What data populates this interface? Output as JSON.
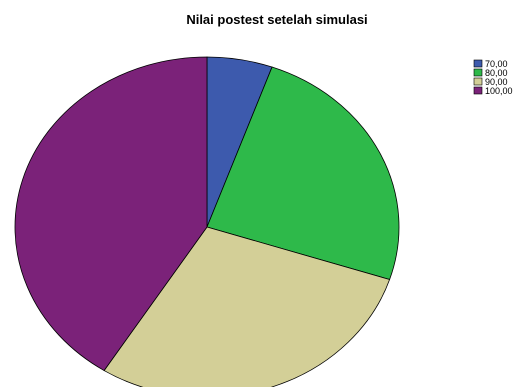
{
  "chart_data": {
    "type": "pie",
    "title": "Nilai postest setelah simulasi",
    "slices": [
      {
        "label": "70,00",
        "value": 5.5,
        "color": "#3d5aad"
      },
      {
        "label": "80,00",
        "value": 24.5,
        "color": "#2eb94a"
      },
      {
        "label": "90,00",
        "value": 29.0,
        "color": "#d3cf97"
      },
      {
        "label": "100,00",
        "value": 41.0,
        "color": "#7b2279"
      }
    ],
    "start_angle_deg": 0,
    "direction": "clockwise",
    "legend_position": "top-right"
  }
}
